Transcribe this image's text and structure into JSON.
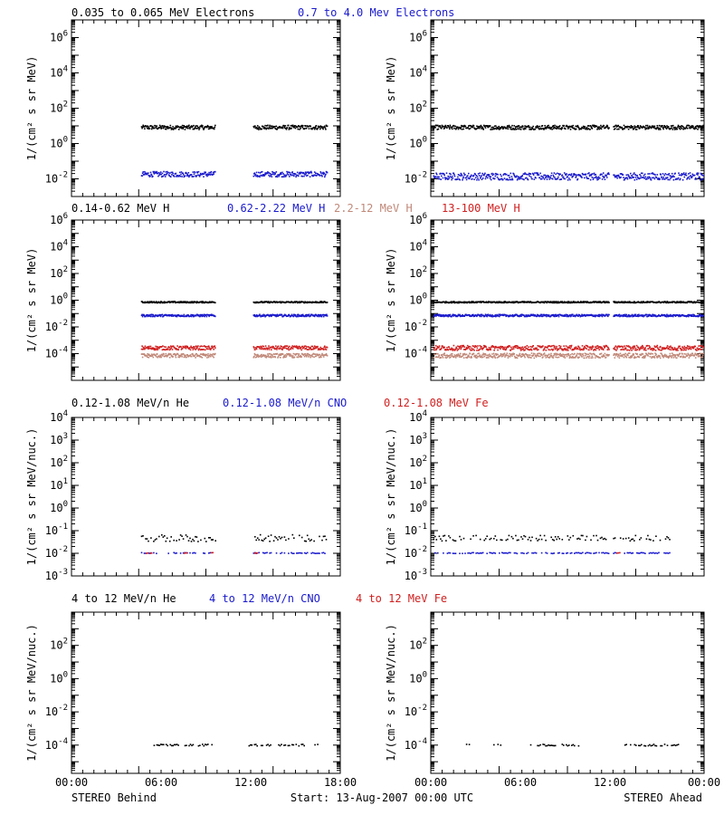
{
  "colors": {
    "black": "#000000",
    "blue": "#1a1acc",
    "tan": "#c08878",
    "red": "#d02020"
  },
  "footer": {
    "left": "STEREO Behind",
    "center": "Start: 13-Aug-2007 00:00 UTC",
    "right": "STEREO Ahead"
  },
  "x_ticks": [
    "00:00",
    "06:00",
    "12:00",
    "18:00",
    "00:00"
  ],
  "chart_data": [
    {
      "type": "scatter",
      "row": 1,
      "title_series": [
        {
          "name": "0.035 to 0.065 MeV Electrons",
          "color": "black"
        },
        {
          "name": "0.7 to 4.0 Mev Electrons",
          "color": "blue"
        }
      ],
      "ylabel": "1/(cm² s sr MeV)",
      "yscale": "log",
      "ylim": [
        0.001,
        10000000
      ],
      "ytick_labels": [
        {
          "base": "10",
          "exp": "-2",
          "v": 0.01
        },
        {
          "base": "10",
          "exp": "0",
          "v": 1
        },
        {
          "base": "10",
          "exp": "2",
          "v": 100
        },
        {
          "base": "10",
          "exp": "4",
          "v": 10000
        },
        {
          "base": "10",
          "exp": "6",
          "v": 1000000
        }
      ],
      "panels": {
        "behind": [
          {
            "color": "black",
            "level": 9,
            "segments": [
              [
                6.2,
                12.8
              ],
              [
                16.2,
                22.8
              ]
            ],
            "spread": 0.12
          },
          {
            "color": "blue",
            "level": 0.02,
            "segments": [
              [
                6.2,
                12.8
              ],
              [
                16.2,
                22.8
              ]
            ],
            "spread": 0.15
          }
        ],
        "ahead": [
          {
            "color": "black",
            "level": 9,
            "segments": [
              [
                0.2,
                15.6
              ],
              [
                16.0,
                23.9
              ]
            ],
            "spread": 0.12
          },
          {
            "color": "blue",
            "level": 0.015,
            "segments": [
              [
                0.2,
                15.6
              ],
              [
                16.0,
                23.9
              ]
            ],
            "spread": 0.2
          }
        ]
      }
    },
    {
      "type": "scatter",
      "row": 2,
      "title_series": [
        {
          "name": "0.14-0.62 MeV H",
          "color": "black"
        },
        {
          "name": "0.62-2.22 MeV H",
          "color": "blue"
        },
        {
          "name": "2.2-12 MeV H",
          "color": "tan"
        },
        {
          "name": "13-100 MeV H",
          "color": "red"
        }
      ],
      "ylabel": "1/(cm² s sr MeV)",
      "yscale": "log",
      "ylim": [
        1e-06,
        1000000
      ],
      "ytick_labels": [
        {
          "base": "10",
          "exp": "-4",
          "v": 0.0001
        },
        {
          "base": "10",
          "exp": "-2",
          "v": 0.01
        },
        {
          "base": "10",
          "exp": "0",
          "v": 1
        },
        {
          "base": "10",
          "exp": "2",
          "v": 100
        },
        {
          "base": "10",
          "exp": "4",
          "v": 10000
        },
        {
          "base": "10",
          "exp": "6",
          "v": 1000000
        }
      ],
      "panels": {
        "behind": [
          {
            "color": "black",
            "level": 0.8,
            "segments": [
              [
                6.2,
                12.8
              ],
              [
                16.2,
                22.8
              ]
            ],
            "spread": 0.05
          },
          {
            "color": "blue",
            "level": 0.08,
            "segments": [
              [
                6.2,
                12.8
              ],
              [
                16.2,
                22.8
              ]
            ],
            "spread": 0.08
          },
          {
            "color": "red",
            "level": 0.0003,
            "segments": [
              [
                6.2,
                12.8
              ],
              [
                16.2,
                22.8
              ]
            ],
            "spread": 0.15
          },
          {
            "color": "tan",
            "level": 8e-05,
            "segments": [
              [
                6.2,
                12.8
              ],
              [
                16.2,
                22.8
              ]
            ],
            "spread": 0.15
          }
        ],
        "ahead": [
          {
            "color": "black",
            "level": 0.8,
            "segments": [
              [
                0.2,
                15.6
              ],
              [
                16.0,
                23.9
              ]
            ],
            "spread": 0.05
          },
          {
            "color": "blue",
            "level": 0.08,
            "segments": [
              [
                0.2,
                15.6
              ],
              [
                16.0,
                23.9
              ]
            ],
            "spread": 0.08
          },
          {
            "color": "red",
            "level": 0.0003,
            "segments": [
              [
                0.2,
                15.6
              ],
              [
                16.0,
                23.9
              ]
            ],
            "spread": 0.18
          },
          {
            "color": "tan",
            "level": 8e-05,
            "segments": [
              [
                0.2,
                15.6
              ],
              [
                16.0,
                23.9
              ]
            ],
            "spread": 0.18
          }
        ]
      }
    },
    {
      "type": "scatter",
      "row": 3,
      "title_series": [
        {
          "name": "0.12-1.08 MeV/n He",
          "color": "black"
        },
        {
          "name": "0.12-1.08 MeV/n CNO",
          "color": "blue"
        },
        {
          "name": "0.12-1.08 MeV Fe",
          "color": "red"
        }
      ],
      "ylabel": "1/(cm² s sr MeV/nuc.)",
      "yscale": "log",
      "ylim": [
        0.001,
        10000
      ],
      "ytick_labels": [
        {
          "base": "10",
          "exp": "-3",
          "v": 0.001
        },
        {
          "base": "10",
          "exp": "-2",
          "v": 0.01
        },
        {
          "base": "10",
          "exp": "-1",
          "v": 0.1
        },
        {
          "base": "10",
          "exp": "0",
          "v": 1
        },
        {
          "base": "10",
          "exp": "1",
          "v": 10
        },
        {
          "base": "10",
          "exp": "2",
          "v": 100
        },
        {
          "base": "10",
          "exp": "3",
          "v": 1000
        },
        {
          "base": "10",
          "exp": "4",
          "v": 10000
        }
      ],
      "panels": {
        "behind": [
          {
            "color": "black",
            "level": 0.05,
            "segments": [
              [
                6.2,
                12.8
              ],
              [
                16.2,
                22.8
              ]
            ],
            "spread": 0.15,
            "sparse": true
          },
          {
            "color": "blue",
            "level": 0.011,
            "segments": [
              [
                6.2,
                7.6
              ],
              [
                8.6,
                12.6
              ],
              [
                16.2,
                22.8
              ]
            ],
            "spread": 0.02,
            "sparse": true
          },
          {
            "color": "red",
            "level": 0.011,
            "segments": [
              [
                6.5,
                7.2
              ],
              [
                10.0,
                10.3
              ],
              [
                12.2,
                12.6
              ],
              [
                16.3,
                16.6
              ]
            ],
            "spread": 0.02,
            "sparse": true
          }
        ],
        "ahead": [
          {
            "color": "black",
            "level": 0.05,
            "segments": [
              [
                0.2,
                15.6
              ],
              [
                16.0,
                21.0
              ]
            ],
            "spread": 0.12,
            "sparse": true
          },
          {
            "color": "blue",
            "level": 0.011,
            "segments": [
              [
                0.2,
                15.6
              ],
              [
                16.0,
                21.0
              ]
            ],
            "spread": 0.02,
            "sparse": true
          },
          {
            "color": "red",
            "level": 0.011,
            "segments": [
              [
                16.3,
                16.6
              ]
            ],
            "spread": 0.02,
            "sparse": true
          }
        ]
      }
    },
    {
      "type": "scatter",
      "row": 4,
      "title_series": [
        {
          "name": "4 to 12 MeV/n He",
          "color": "black"
        },
        {
          "name": "4 to 12 MeV/n CNO",
          "color": "blue"
        },
        {
          "name": "4 to 12 MeV Fe",
          "color": "red"
        }
      ],
      "ylabel": "1/(cm² s sr MeV/nuc.)",
      "yscale": "log",
      "ylim": [
        2e-06,
        10000
      ],
      "ytick_labels": [
        {
          "base": "10",
          "exp": "-4",
          "v": 0.0001
        },
        {
          "base": "10",
          "exp": "-2",
          "v": 0.01
        },
        {
          "base": "10",
          "exp": "0",
          "v": 1
        },
        {
          "base": "10",
          "exp": "2",
          "v": 100
        }
      ],
      "panels": {
        "behind": [
          {
            "color": "black",
            "level": 0.00011,
            "segments": [
              [
                7.2,
                12.6
              ],
              [
                15.8,
                22.0
              ]
            ],
            "spread": 0.05,
            "sparse": true
          }
        ],
        "ahead": [
          {
            "color": "black",
            "level": 0.00011,
            "segments": [
              [
                2.6,
                3.4
              ],
              [
                5.0,
                6.4
              ],
              [
                8.6,
                13.0
              ],
              [
                17.0,
                21.8
              ]
            ],
            "spread": 0.05,
            "sparse": true
          }
        ]
      }
    }
  ]
}
